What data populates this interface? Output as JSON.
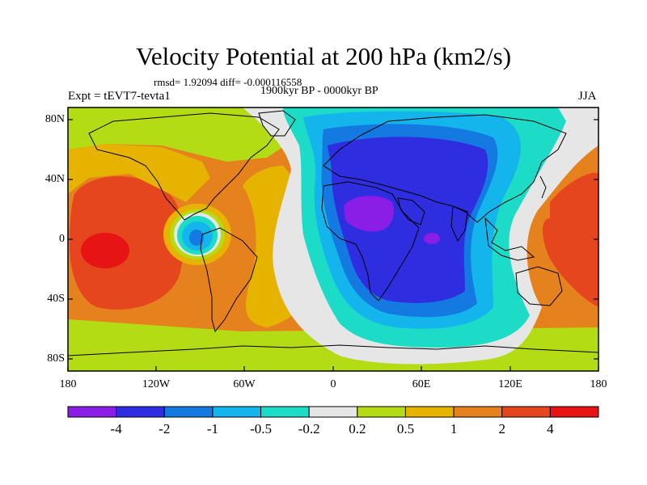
{
  "title": "Velocity Potential at 200 hPa (km2/s)",
  "stats_line": "rmsd= 1.92094 diff= -0.000116558",
  "subtitle": "1900kyr BP - 0000kyr BP",
  "experiment": "Expt = tEVT7-tevta1",
  "season": "JJA",
  "lat_labels": [
    "80N",
    "40N",
    "0",
    "40S",
    "80S"
  ],
  "lon_labels": [
    "180",
    "120W",
    "60W",
    "0",
    "60E",
    "120E",
    "180"
  ],
  "colorbar": {
    "labels": [
      "-4",
      "-2",
      "-1",
      "-0.5",
      "-0.2",
      "0.2",
      "0.5",
      "1",
      "2",
      "4"
    ],
    "colors": [
      "#8a1ee6",
      "#2e2ee0",
      "#1479e0",
      "#14b4ec",
      "#1cdcc8",
      "#e6e6e6",
      "#b4dc14",
      "#e6b400",
      "#e6821e",
      "#e6461e",
      "#e61414"
    ]
  },
  "colors": {
    "land_outline": "#000000",
    "frame": "#000000"
  }
}
